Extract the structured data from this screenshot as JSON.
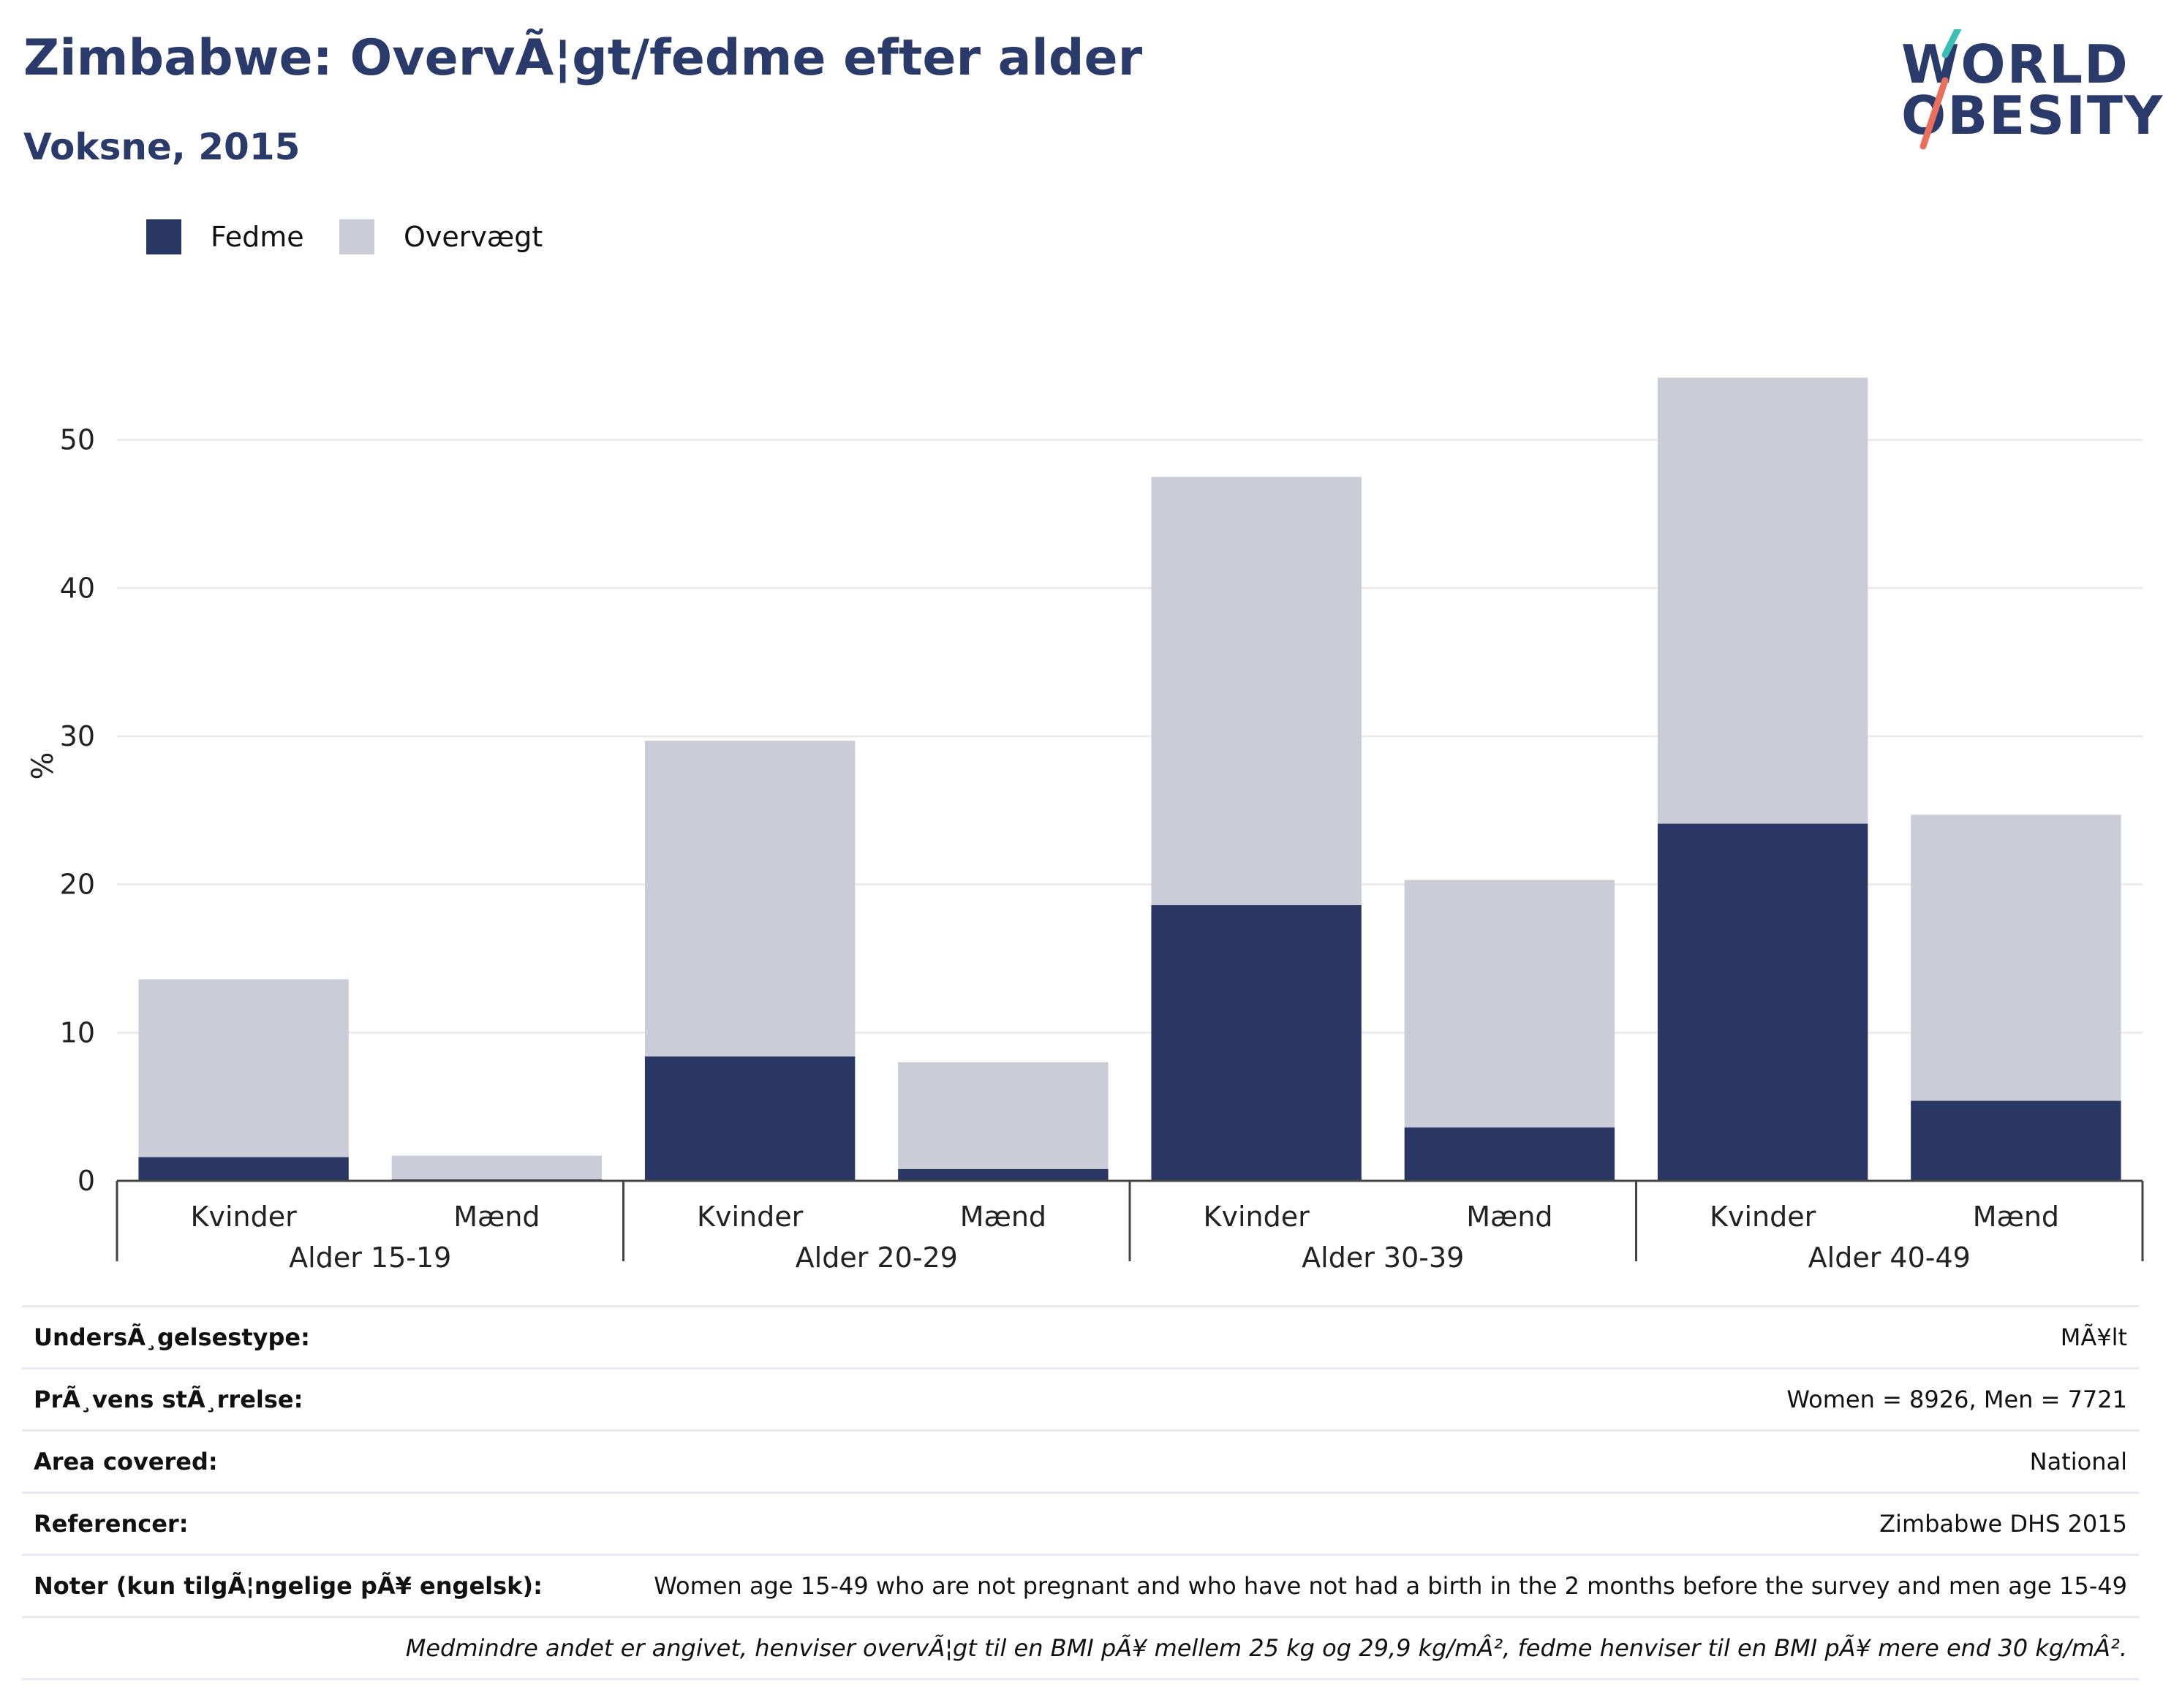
{
  "header": {
    "title": "Zimbabwe: OvervÃ¦gt/fedme efter alder",
    "subtitle": "Voksne, 2015"
  },
  "logo": {
    "line1": "WORLD",
    "line2": "OBESITY",
    "name": "world-obesity-logo"
  },
  "colors": {
    "fedme": "#2a3664",
    "overvaegt": "#caccd8",
    "title": "#2a3a6a",
    "grid": "#ebebf0"
  },
  "legend": [
    {
      "label": "Fedme",
      "color": "#2a3664"
    },
    {
      "label": "Overvægt",
      "color": "#caccd8"
    }
  ],
  "chart_data": {
    "type": "bar",
    "stacked": true,
    "ylabel": "%",
    "ylim": [
      0,
      56
    ],
    "yticks": [
      0,
      10,
      20,
      30,
      40,
      50
    ],
    "grid": true,
    "legend_position": "top-left",
    "groups": [
      "Alder 15-19",
      "Alder 20-29",
      "Alder 30-39",
      "Alder 40-49"
    ],
    "subcategories": [
      "Kvinder",
      "Mænd"
    ],
    "categories": [
      "Kvinder",
      "Mænd",
      "Kvinder",
      "Mænd",
      "Kvinder",
      "Mænd",
      "Kvinder",
      "Mænd"
    ],
    "series": [
      {
        "name": "Fedme",
        "values": [
          1.6,
          0.1,
          8.4,
          0.8,
          18.6,
          3.6,
          24.1,
          5.4
        ]
      },
      {
        "name": "Overvægt",
        "values": [
          12.0,
          1.6,
          21.3,
          7.2,
          28.9,
          16.7,
          30.1,
          19.3
        ]
      }
    ]
  },
  "footer": {
    "rows": [
      {
        "label": "UndersÃ¸gelsestype:",
        "value": "MÃ¥lt"
      },
      {
        "label": "PrÃ¸vens stÃ¸rrelse:",
        "value": "Women = 8926, Men = 7721"
      },
      {
        "label": "Area covered:",
        "value": "National"
      },
      {
        "label": "Referencer:",
        "value": "Zimbabwe DHS 2015"
      },
      {
        "label": "Noter (kun tilgÃ¦ngelige pÃ¥ engelsk):",
        "value": "Women age 15-49 who are not pregnant and who have not had a birth in the 2 months before the survey and men age 15-49"
      }
    ],
    "note": "Medmindre andet er angivet, henviser overvÃ¦gt til en BMI pÃ¥ mellem 25 kg og 29,9 kg/mÂ², fedme henviser til en BMI pÃ¥ mere end 30 kg/mÂ²."
  }
}
